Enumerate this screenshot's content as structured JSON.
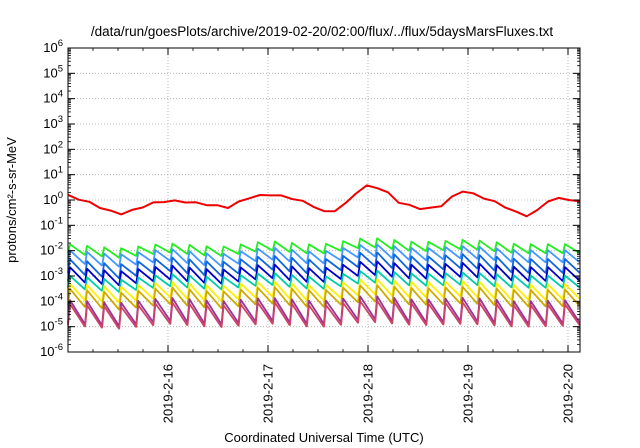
{
  "chart_data": {
    "type": "line",
    "title": "/data/run/goesPlots/archive/2019-02-20/02:00/flux/../flux/5daysMarsFluxes.txt",
    "xlabel": "Coordinated Universal Time (UTC)",
    "ylabel": "protons/cm²-s-sr-MeV",
    "yscale": "log",
    "ylim_exponents": [
      -6,
      6
    ],
    "y_tick_base": "10",
    "y_tick_exponents": [
      "-6",
      "-5",
      "-4",
      "-3",
      "-2",
      "-1",
      "0",
      "1",
      "2",
      "3",
      "4",
      "5",
      "6"
    ],
    "xlim_days": [
      15.0,
      20.12
    ],
    "x_ticks": [
      {
        "label": "2019-2-16",
        "day": 16
      },
      {
        "label": "2019-2-17",
        "day": 17
      },
      {
        "label": "2019-2-18",
        "day": 18
      },
      {
        "label": "2019-2-19",
        "day": 19
      },
      {
        "label": "2019-2-20",
        "day": 20
      }
    ],
    "grid": true,
    "legend": "none",
    "series": [
      {
        "color": "#ee0000",
        "style": "smooth",
        "points": [
          [
            15.0,
            1.6
          ],
          [
            15.2,
            0.9
          ],
          [
            15.4,
            0.4
          ],
          [
            15.55,
            0.3
          ],
          [
            15.7,
            0.5
          ],
          [
            15.85,
            0.8
          ],
          [
            16.0,
            1.0
          ],
          [
            16.2,
            0.9
          ],
          [
            16.4,
            0.7
          ],
          [
            16.6,
            0.55
          ],
          [
            16.8,
            1.3
          ],
          [
            17.0,
            1.8
          ],
          [
            17.2,
            1.4
          ],
          [
            17.4,
            0.8
          ],
          [
            17.6,
            0.3
          ],
          [
            17.75,
            0.6
          ],
          [
            17.9,
            2.5
          ],
          [
            18.0,
            4.0
          ],
          [
            18.15,
            3.0
          ],
          [
            18.3,
            0.9
          ],
          [
            18.5,
            0.5
          ],
          [
            18.7,
            0.5
          ],
          [
            18.8,
            1.1
          ],
          [
            18.95,
            2.5
          ],
          [
            19.1,
            1.6
          ],
          [
            19.3,
            0.8
          ],
          [
            19.45,
            0.4
          ],
          [
            19.55,
            0.25
          ],
          [
            19.65,
            0.28
          ],
          [
            19.8,
            1.0
          ],
          [
            19.95,
            1.3
          ],
          [
            20.12,
            0.9
          ]
        ],
        "amp": 1.7,
        "teeth": 24
      },
      {
        "color": "#22ee22",
        "style": "sawtooth",
        "points": [
          [
            15.0,
            0.012
          ],
          [
            15.5,
            0.008
          ],
          [
            16.0,
            0.013
          ],
          [
            16.5,
            0.009
          ],
          [
            17.0,
            0.016
          ],
          [
            17.5,
            0.011
          ],
          [
            18.0,
            0.022
          ],
          [
            18.5,
            0.014
          ],
          [
            19.0,
            0.018
          ],
          [
            19.5,
            0.012
          ],
          [
            20.12,
            0.012
          ]
        ],
        "amp": 2.3,
        "teeth": 30
      },
      {
        "color": "#4499ff",
        "style": "sawtooth",
        "points": [
          [
            15.0,
            0.006
          ],
          [
            15.5,
            0.004
          ],
          [
            16.0,
            0.007
          ],
          [
            16.5,
            0.004
          ],
          [
            17.0,
            0.008
          ],
          [
            17.5,
            0.005
          ],
          [
            18.0,
            0.011
          ],
          [
            18.5,
            0.007
          ],
          [
            19.0,
            0.009
          ],
          [
            19.5,
            0.006
          ],
          [
            20.12,
            0.006
          ]
        ],
        "amp": 3.0,
        "teeth": 30
      },
      {
        "color": "#1166dd",
        "style": "sawtooth",
        "points": [
          [
            15.0,
            0.0025
          ],
          [
            15.5,
            0.0015
          ],
          [
            16.0,
            0.003
          ],
          [
            16.5,
            0.0018
          ],
          [
            17.0,
            0.0035
          ],
          [
            17.5,
            0.0022
          ],
          [
            18.0,
            0.005
          ],
          [
            18.5,
            0.003
          ],
          [
            19.0,
            0.004
          ],
          [
            19.5,
            0.0025
          ],
          [
            20.12,
            0.0025
          ]
        ],
        "amp": 3.5,
        "teeth": 30
      },
      {
        "color": "#0000cc",
        "style": "sawtooth",
        "points": [
          [
            15.0,
            0.0012
          ],
          [
            15.5,
            0.0008
          ],
          [
            16.0,
            0.0014
          ],
          [
            16.5,
            0.0009
          ],
          [
            17.0,
            0.0016
          ],
          [
            17.5,
            0.001
          ],
          [
            18.0,
            0.0022
          ],
          [
            18.5,
            0.0014
          ],
          [
            19.0,
            0.0018
          ],
          [
            19.5,
            0.0012
          ],
          [
            20.12,
            0.0012
          ]
        ],
        "amp": 3.5,
        "teeth": 30
      },
      {
        "color": "#00ccaa",
        "style": "sawtooth",
        "points": [
          [
            15.0,
            0.0006
          ],
          [
            15.5,
            0.0004
          ],
          [
            16.0,
            0.0007
          ],
          [
            16.5,
            0.0005
          ],
          [
            17.0,
            0.0008
          ],
          [
            17.5,
            0.0005
          ],
          [
            18.0,
            0.001
          ],
          [
            18.5,
            0.0007
          ],
          [
            19.0,
            0.0008
          ],
          [
            19.5,
            0.0006
          ],
          [
            20.12,
            0.0006
          ]
        ],
        "amp": 3.0,
        "teeth": 30
      },
      {
        "color": "#ffee00",
        "style": "sawtooth",
        "points": [
          [
            15.0,
            0.00025
          ],
          [
            15.5,
            0.00018
          ],
          [
            16.0,
            0.0003
          ],
          [
            16.5,
            0.0002
          ],
          [
            17.0,
            0.00032
          ],
          [
            17.5,
            0.0002
          ],
          [
            18.0,
            0.0004
          ],
          [
            18.5,
            0.00028
          ],
          [
            19.0,
            0.00032
          ],
          [
            19.5,
            0.00022
          ],
          [
            20.12,
            0.00025
          ]
        ],
        "amp": 4.0,
        "teeth": 30
      },
      {
        "color": "#ccaa00",
        "style": "sawtooth",
        "points": [
          [
            15.0,
            0.00015
          ],
          [
            15.5,
            0.0001
          ],
          [
            16.0,
            0.00017
          ],
          [
            16.5,
            0.00011
          ],
          [
            17.0,
            0.00018
          ],
          [
            17.5,
            0.00012
          ],
          [
            18.0,
            0.00022
          ],
          [
            18.5,
            0.00015
          ],
          [
            19.0,
            0.00018
          ],
          [
            19.5,
            0.00013
          ],
          [
            20.12,
            0.00014
          ]
        ],
        "amp": 4.5,
        "teeth": 30
      },
      {
        "color": "#993399",
        "style": "sawtooth",
        "points": [
          [
            15.0,
            4e-05
          ],
          [
            15.5,
            3e-05
          ],
          [
            16.0,
            5e-05
          ],
          [
            16.5,
            3.5e-05
          ],
          [
            17.0,
            5e-05
          ],
          [
            17.5,
            3.5e-05
          ],
          [
            18.0,
            6e-05
          ],
          [
            18.5,
            4e-05
          ],
          [
            19.0,
            5e-05
          ],
          [
            19.5,
            3.5e-05
          ],
          [
            20.12,
            4e-05
          ]
        ],
        "amp": 8.0,
        "teeth": 30
      },
      {
        "color": "#cc4466",
        "style": "sawtooth",
        "points": [
          [
            15.0,
            3e-05
          ],
          [
            15.5,
            2.2e-05
          ],
          [
            16.0,
            3.5e-05
          ],
          [
            16.5,
            2.5e-05
          ],
          [
            17.0,
            3.6e-05
          ],
          [
            17.5,
            2.5e-05
          ],
          [
            18.0,
            4.2e-05
          ],
          [
            18.5,
            3e-05
          ],
          [
            19.0,
            3.5e-05
          ],
          [
            19.5,
            2.6e-05
          ],
          [
            20.12,
            3e-05
          ]
        ],
        "amp": 7.0,
        "teeth": 30
      }
    ]
  }
}
